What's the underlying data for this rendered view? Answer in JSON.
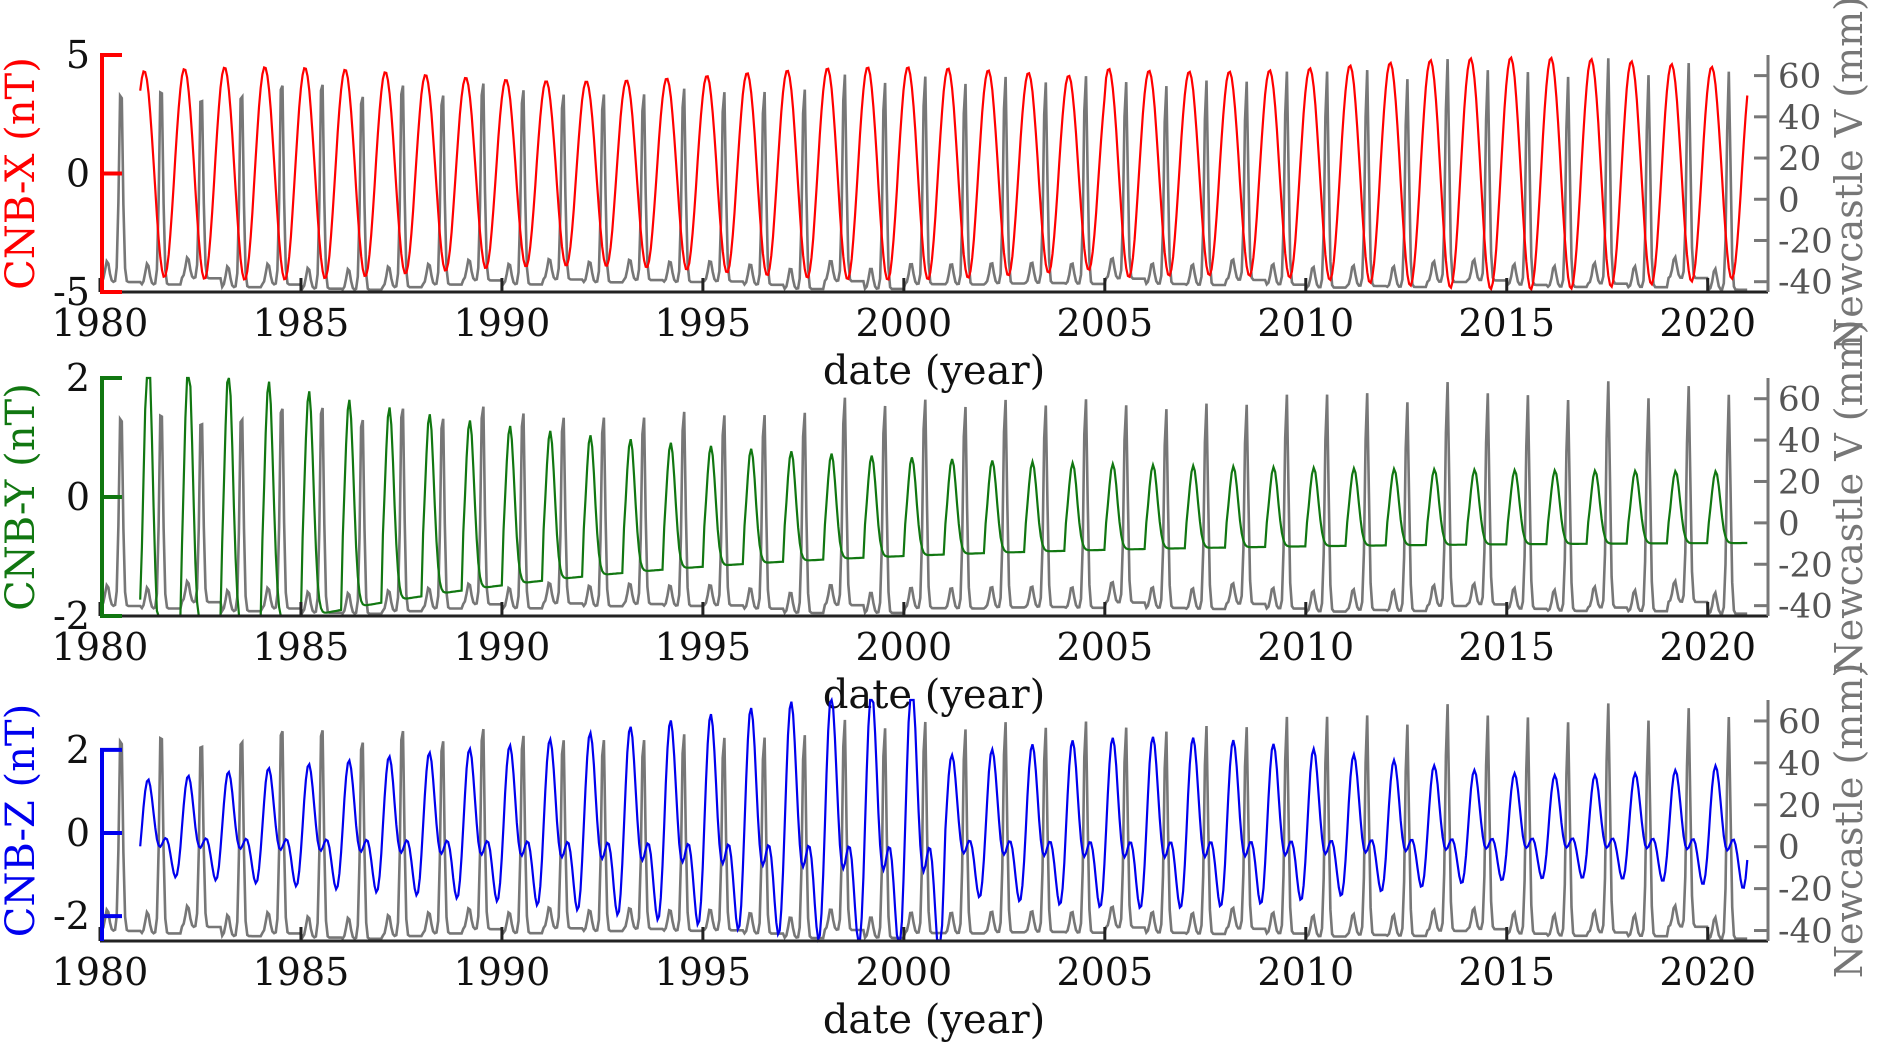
{
  "figure_title": "",
  "colors": {
    "newcastle": "#777777",
    "x_series": "#ff0000",
    "y_series": "#117711",
    "z_series": "#0000ee",
    "axis": "#222222"
  },
  "chart_data": [
    {
      "type": "line",
      "title": "",
      "xlabel": "date (year)",
      "ylabel": "CNB-X (nT)",
      "y2label": "Newcastle V (mm)",
      "xlim": [
        1980,
        2021.5
      ],
      "ylim": [
        -5,
        5
      ],
      "y2lim": [
        -45,
        70
      ],
      "xticks": [
        1980,
        1985,
        1990,
        1995,
        2000,
        2005,
        2010,
        2015,
        2020
      ],
      "yticks": [
        -5,
        0,
        5
      ],
      "y2ticks": [
        -40,
        -20,
        0,
        20,
        40,
        60
      ],
      "series": [
        {
          "name": "CNB-X",
          "axis": "left",
          "color": "#ff0000",
          "t_start": 1981.0,
          "t_end": 2021.0,
          "step": 0.0833,
          "pattern": "annual sinusoid, amplitude ~4.5 nT rising to ~5 nT after 2010"
        },
        {
          "name": "Newcastle V",
          "axis": "right",
          "color": "#777777",
          "t_start": 1980.0,
          "t_end": 2021.0,
          "step": 0.0833,
          "pattern": "annual peaks ~55-70 mm, troughs ~-40 mm"
        }
      ]
    },
    {
      "type": "line",
      "title": "",
      "xlabel": "date (year)",
      "ylabel": "CNB-Y (nT)",
      "y2label": "Newcastle V (mm)",
      "xlim": [
        1980,
        2021.5
      ],
      "ylim": [
        -2,
        2
      ],
      "y2lim": [
        -45,
        70
      ],
      "xticks": [
        1980,
        1985,
        1990,
        1995,
        2000,
        2005,
        2010,
        2015,
        2020
      ],
      "yticks": [
        -2,
        0,
        2
      ],
      "y2ticks": [
        -40,
        -20,
        0,
        20,
        40,
        60
      ],
      "series": [
        {
          "name": "CNB-Y",
          "axis": "left",
          "color": "#117711",
          "t_start": 1981.0,
          "t_end": 2021.0,
          "step": 0.0833,
          "pattern": "annual, amplitude ~2 nT in 1982 decaying to ~0.6 nT after 2005"
        },
        {
          "name": "Newcastle V",
          "axis": "right",
          "color": "#777777",
          "t_start": 1980.0,
          "t_end": 2021.0,
          "step": 0.0833,
          "pattern": "annual peaks ~55-70 mm, troughs ~-40 mm"
        }
      ]
    },
    {
      "type": "line",
      "title": "",
      "xlabel": "date (year)",
      "ylabel": "CNB-Z (nT)",
      "y2label": "Newcastle (mm)",
      "xlim": [
        1980,
        2021.5
      ],
      "ylim": [
        -2.6,
        3.2
      ],
      "y2lim": [
        -45,
        70
      ],
      "xticks": [
        1980,
        1985,
        1990,
        1995,
        2000,
        2005,
        2010,
        2015,
        2020
      ],
      "yticks": [
        -2,
        0,
        2
      ],
      "y2ticks": [
        -40,
        -20,
        0,
        20,
        40,
        60
      ],
      "series": [
        {
          "name": "CNB-Z",
          "axis": "left",
          "color": "#0000ee",
          "t_start": 1981.0,
          "t_end": 2021.0,
          "step": 0.0833,
          "pattern": "annual + semiannual, amplitude ~1.3 nT rising to ~3.2 nT near 1998-2001 then ~2 nT"
        },
        {
          "name": "Newcastle V",
          "axis": "right",
          "color": "#777777",
          "t_start": 1980.0,
          "t_end": 2021.0,
          "step": 0.0833,
          "pattern": "annual peaks ~55-70 mm, troughs ~-40 mm"
        }
      ]
    }
  ]
}
